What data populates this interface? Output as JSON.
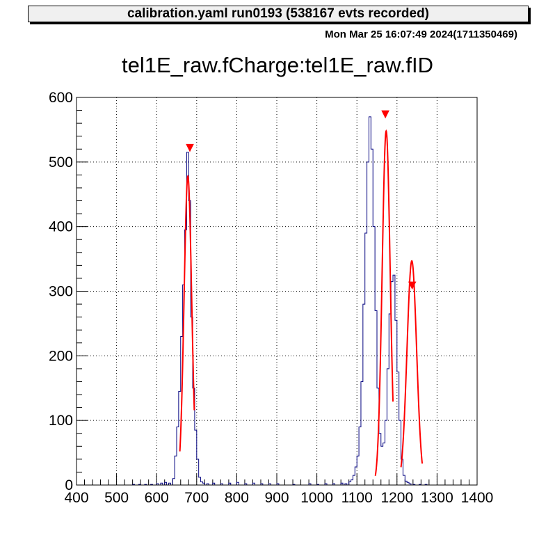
{
  "header": {
    "caption": "calibration.yaml  run0193 (538167 evts recorded)",
    "timestamp": "Mon Mar 25 16:07:49 2024(1711350469)"
  },
  "chart_data": {
    "type": "histogram",
    "title": "tel1E_raw.fCharge:tel1E_raw.fID",
    "xlabel": "",
    "ylabel": "",
    "xlim": [
      400,
      1400
    ],
    "ylim": [
      0,
      600
    ],
    "grid": true,
    "x_ticks": [
      400,
      500,
      600,
      700,
      800,
      900,
      1000,
      1100,
      1200,
      1300,
      1400
    ],
    "y_ticks": [
      0,
      100,
      200,
      300,
      400,
      500,
      600
    ],
    "colors": {
      "histogram": "#00007f",
      "fit": "#ff0000",
      "marker": "#ff0000"
    },
    "bin_width": 5,
    "bins": [
      [
        540,
        1
      ],
      [
        555,
        1
      ],
      [
        570,
        1
      ],
      [
        585,
        1
      ],
      [
        600,
        2
      ],
      [
        610,
        3
      ],
      [
        620,
        4
      ],
      [
        630,
        3
      ],
      [
        640,
        10
      ],
      [
        645,
        45
      ],
      [
        650,
        90
      ],
      [
        655,
        145
      ],
      [
        660,
        230
      ],
      [
        665,
        310
      ],
      [
        670,
        395
      ],
      [
        675,
        515
      ],
      [
        680,
        440
      ],
      [
        685,
        260
      ],
      [
        690,
        150
      ],
      [
        695,
        85
      ],
      [
        700,
        40
      ],
      [
        705,
        12
      ],
      [
        710,
        5
      ],
      [
        715,
        3
      ],
      [
        725,
        2
      ],
      [
        740,
        3
      ],
      [
        760,
        2
      ],
      [
        780,
        3
      ],
      [
        800,
        4
      ],
      [
        820,
        2
      ],
      [
        840,
        3
      ],
      [
        860,
        2
      ],
      [
        880,
        2
      ],
      [
        900,
        2
      ],
      [
        940,
        1
      ],
      [
        980,
        2
      ],
      [
        1000,
        1
      ],
      [
        1020,
        2
      ],
      [
        1040,
        2
      ],
      [
        1060,
        3
      ],
      [
        1070,
        2
      ],
      [
        1080,
        5
      ],
      [
        1085,
        8
      ],
      [
        1090,
        15
      ],
      [
        1095,
        28
      ],
      [
        1100,
        45
      ],
      [
        1105,
        90
      ],
      [
        1110,
        160
      ],
      [
        1115,
        280
      ],
      [
        1120,
        390
      ],
      [
        1125,
        500
      ],
      [
        1130,
        570
      ],
      [
        1135,
        520
      ],
      [
        1140,
        400
      ],
      [
        1145,
        270
      ],
      [
        1150,
        150
      ],
      [
        1155,
        80
      ],
      [
        1160,
        60
      ],
      [
        1165,
        65
      ],
      [
        1170,
        100
      ],
      [
        1175,
        180
      ],
      [
        1180,
        265
      ],
      [
        1185,
        315
      ],
      [
        1190,
        325
      ],
      [
        1195,
        255
      ],
      [
        1200,
        175
      ],
      [
        1205,
        100
      ],
      [
        1210,
        40
      ],
      [
        1215,
        15
      ],
      [
        1220,
        6
      ],
      [
        1225,
        4
      ],
      [
        1230,
        2
      ],
      [
        1240,
        1
      ],
      [
        1255,
        1
      ],
      [
        1270,
        1
      ]
    ],
    "fit_peaks": [
      {
        "mean": 678,
        "amplitude": 478,
        "sigma": 9.5,
        "range": [
          658,
          694
        ]
      },
      {
        "mean": 1173,
        "amplitude": 548,
        "sigma": 10,
        "range": [
          1146,
          1190
        ]
      },
      {
        "mean": 1237,
        "amplitude": 347,
        "sigma": 12,
        "range": [
          1210,
          1263
        ]
      }
    ],
    "peak_markers": [
      {
        "x": 683,
        "y": 522
      },
      {
        "x": 1171,
        "y": 574
      },
      {
        "x": 1238,
        "y": 309
      }
    ]
  }
}
